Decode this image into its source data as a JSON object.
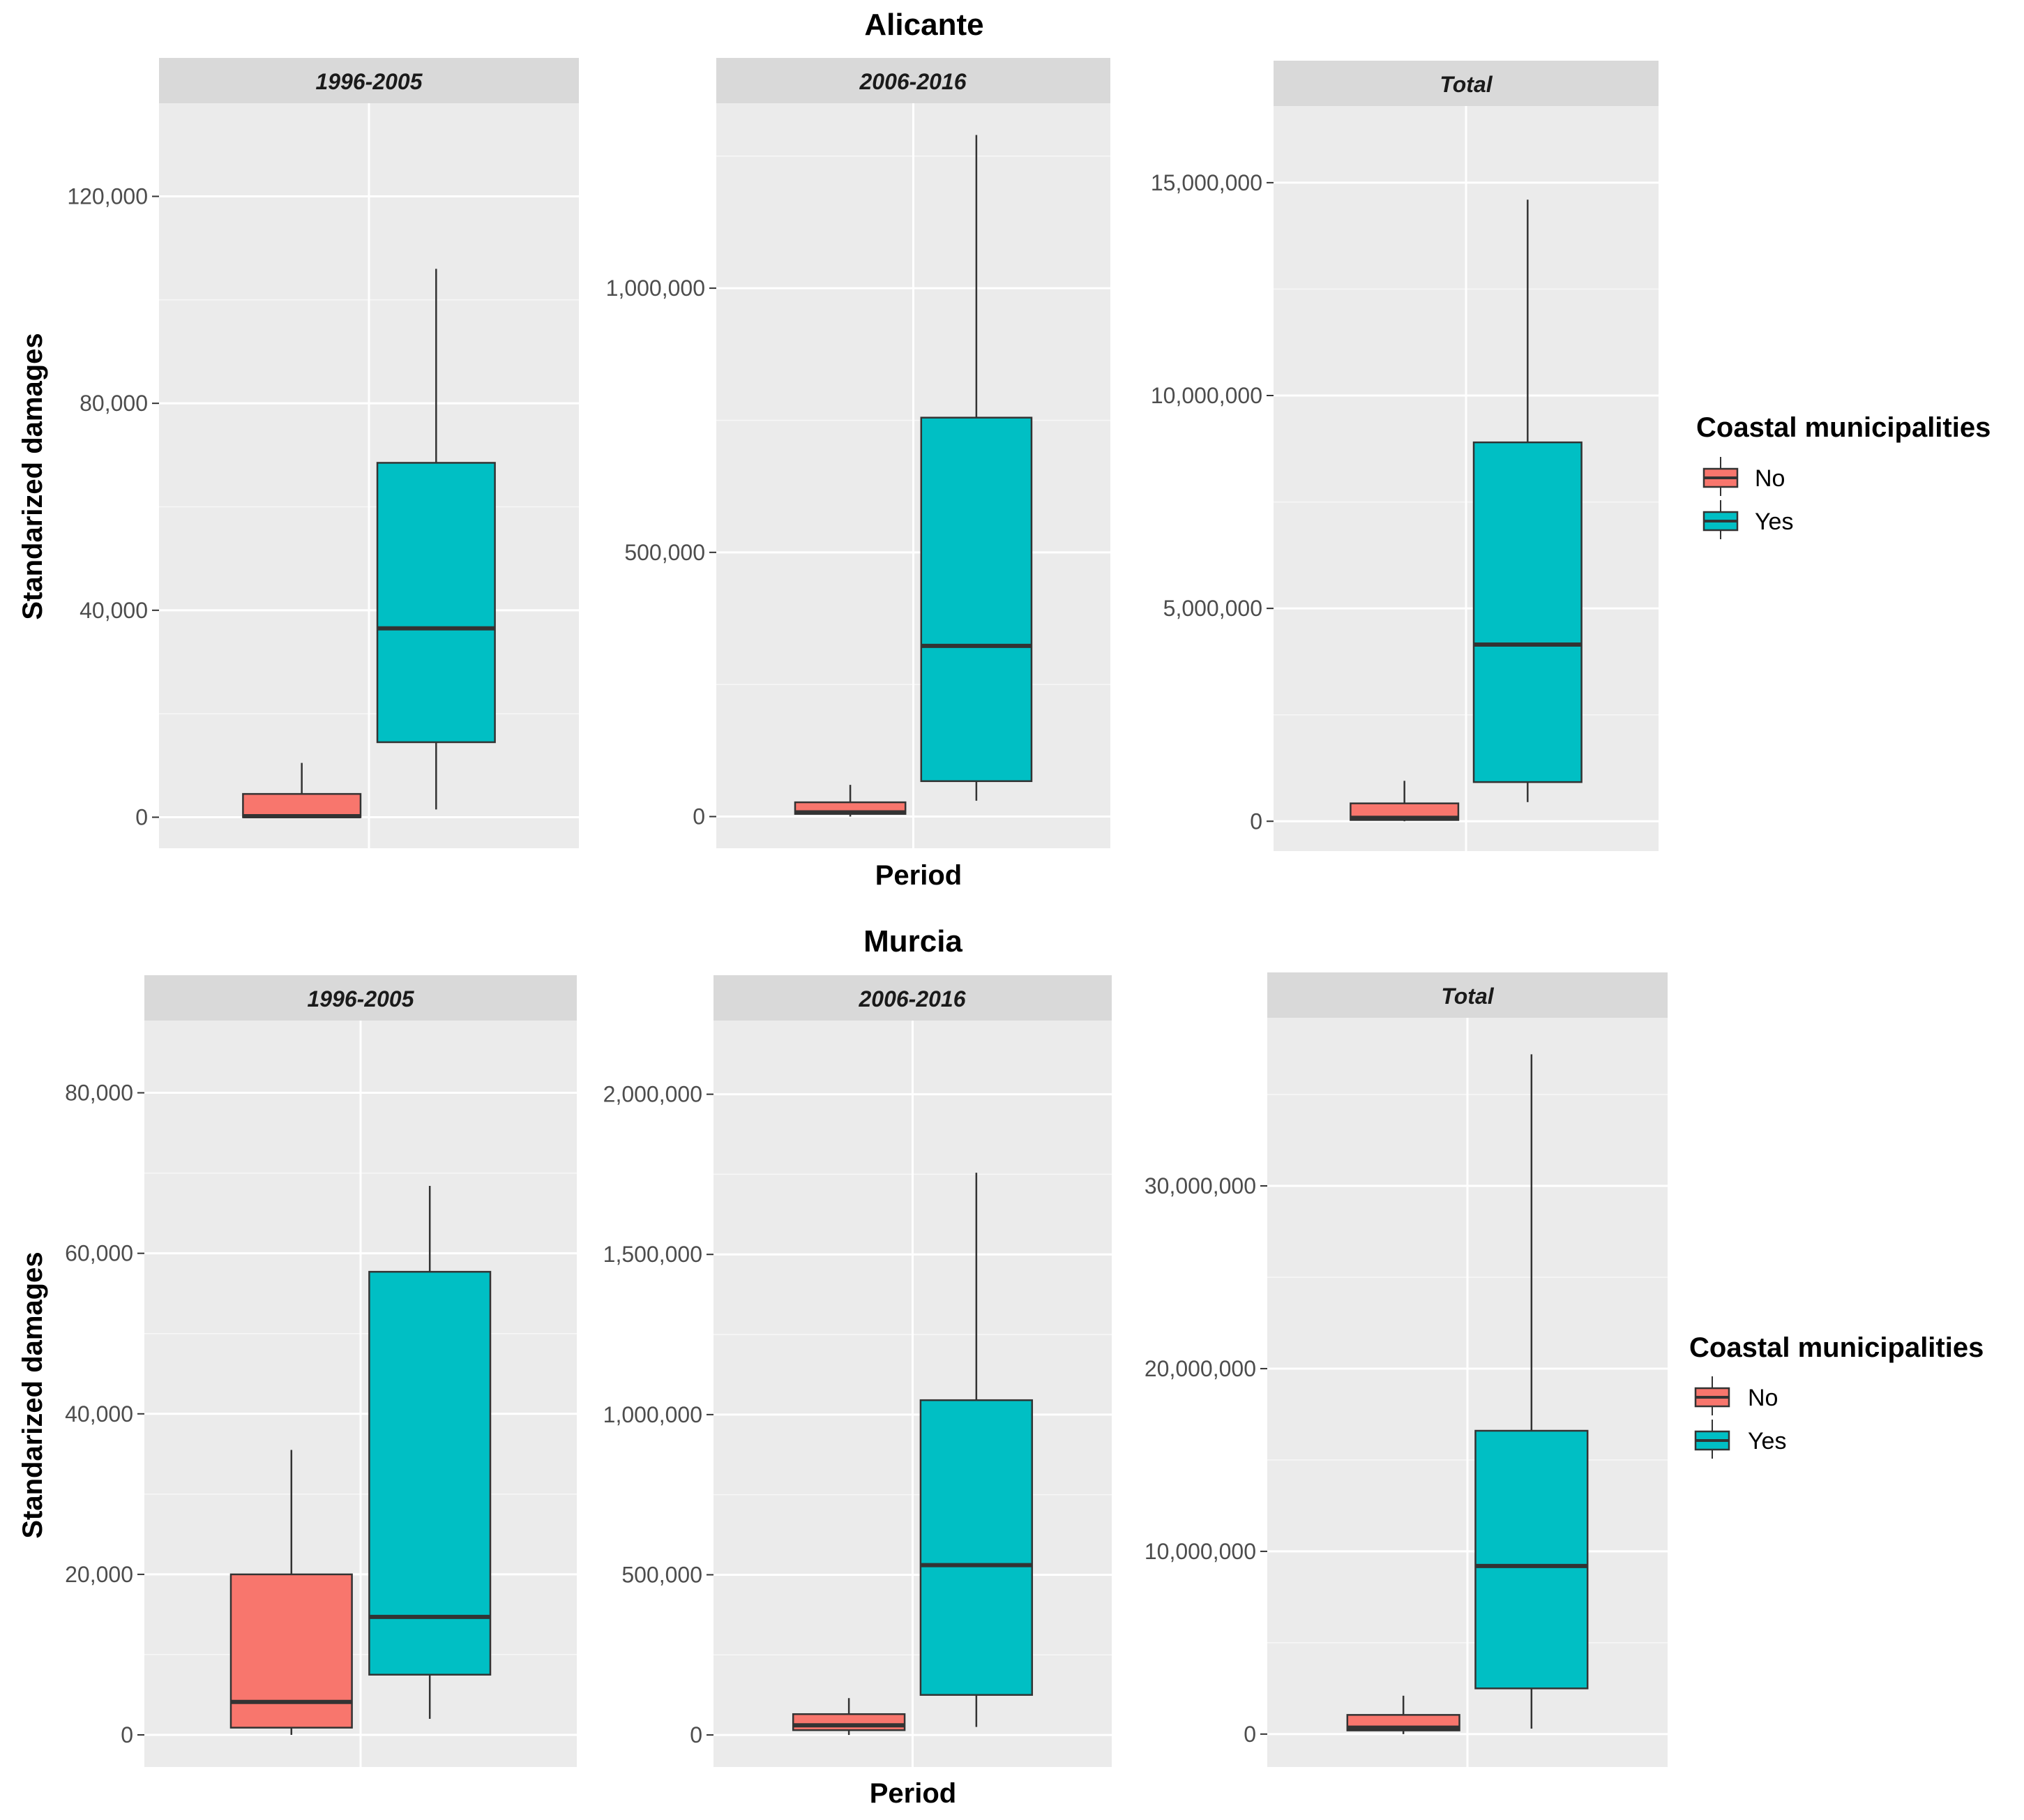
{
  "colors": {
    "no": "#F8766D",
    "yes": "#00BFC4",
    "panel": "#EBEBEB",
    "strip": "#D9D9D9",
    "grid": "#FFFFFF",
    "outline": "#333333"
  },
  "axis": {
    "ylabel": "Standarized damages",
    "xlabel": "Period"
  },
  "legend": {
    "title": "Coastal municipalities",
    "labels": [
      "No",
      "Yes"
    ]
  },
  "chart_data": [
    {
      "type": "boxplot",
      "title": "Alicante",
      "row": 0,
      "panels": [
        {
          "strip": "1996-2005",
          "ylim": [
            -6000,
            138000
          ],
          "ticks": [
            0,
            40000,
            80000,
            120000
          ],
          "tick_labels": [
            "0",
            "40,000",
            "80,000",
            "120,000"
          ],
          "series": [
            {
              "name": "No",
              "min": 0,
              "q1": 0,
              "median": 200,
              "q3": 4500,
              "max": 10500
            },
            {
              "name": "Yes",
              "min": 1500,
              "q1": 14500,
              "median": 36500,
              "q3": 68500,
              "max": 106000
            }
          ]
        },
        {
          "strip": "2006-2016",
          "ylim": [
            -60000,
            1350000
          ],
          "ticks": [
            0,
            500000,
            1000000
          ],
          "tick_labels": [
            "0",
            "500,000",
            "1,000,000"
          ],
          "series": [
            {
              "name": "No",
              "min": 0,
              "q1": 5000,
              "median": 8000,
              "q3": 27000,
              "max": 60000
            },
            {
              "name": "Yes",
              "min": 30000,
              "q1": 67000,
              "median": 323000,
              "q3": 755000,
              "max": 1290000
            }
          ]
        },
        {
          "strip": "Total",
          "ylim": [
            -700000,
            16800000
          ],
          "ticks": [
            0,
            5000000,
            10000000,
            15000000
          ],
          "tick_labels": [
            "0",
            "5,000,000",
            "10,000,000",
            "15,000,000"
          ],
          "series": [
            {
              "name": "No",
              "min": 0,
              "q1": 30000,
              "median": 80000,
              "q3": 420000,
              "max": 950000
            },
            {
              "name": "Yes",
              "min": 450000,
              "q1": 920000,
              "median": 4150000,
              "q3": 8900000,
              "max": 14600000
            }
          ]
        }
      ]
    },
    {
      "type": "boxplot",
      "title": "Murcia",
      "row": 1,
      "panels": [
        {
          "strip": "1996-2005",
          "ylim": [
            -4000,
            89000
          ],
          "ticks": [
            0,
            20000,
            40000,
            60000,
            80000
          ],
          "tick_labels": [
            "0",
            "20,000",
            "40,000",
            "60,000",
            "80,000"
          ],
          "series": [
            {
              "name": "No",
              "min": 0,
              "q1": 900,
              "median": 4100,
              "q3": 20000,
              "max": 35500
            },
            {
              "name": "Yes",
              "min": 2000,
              "q1": 7500,
              "median": 14700,
              "q3": 57700,
              "max": 68400
            }
          ]
        },
        {
          "strip": "2006-2016",
          "ylim": [
            -100000,
            2230000
          ],
          "ticks": [
            0,
            500000,
            1000000,
            1500000,
            2000000
          ],
          "tick_labels": [
            "0",
            "500,000",
            "1,000,000",
            "1,500,000",
            "2,000,000"
          ],
          "series": [
            {
              "name": "No",
              "min": 0,
              "q1": 15000,
              "median": 30000,
              "q3": 65000,
              "max": 115000
            },
            {
              "name": "Yes",
              "min": 25000,
              "q1": 125000,
              "median": 530000,
              "q3": 1045000,
              "max": 1755000
            }
          ]
        },
        {
          "strip": "Total",
          "ylim": [
            -1800000,
            39200000
          ],
          "ticks": [
            0,
            10000000,
            20000000,
            30000000
          ],
          "tick_labels": [
            "0",
            "10,000,000",
            "20,000,000",
            "30,000,000"
          ],
          "series": [
            {
              "name": "No",
              "min": 0,
              "q1": 200000,
              "median": 350000,
              "q3": 1050000,
              "max": 2100000
            },
            {
              "name": "Yes",
              "min": 300000,
              "q1": 2500000,
              "median": 9200000,
              "q3": 16600000,
              "max": 37200000
            }
          ]
        }
      ]
    }
  ]
}
